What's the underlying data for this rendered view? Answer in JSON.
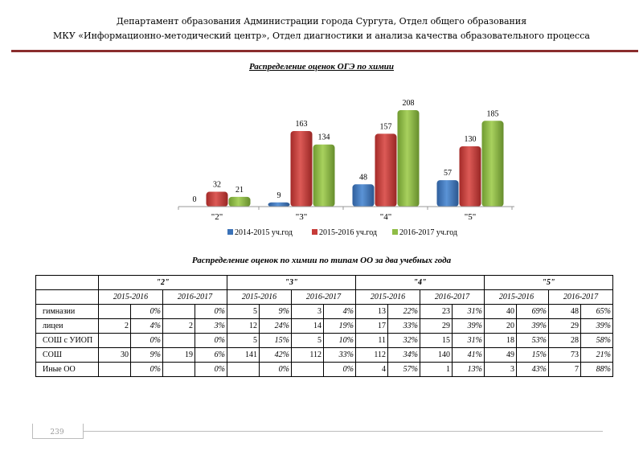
{
  "header": {
    "line1": "Департамент образования Администрации города Сургута, Отдел общего образования",
    "line2": "МКУ «Информационно-методический центр», Отдел диагностики и анализа качества образовательного процесса"
  },
  "colors": {
    "rule": "#8a2d2d",
    "series": [
      "#3b72b8",
      "#c63b38",
      "#8fbc45"
    ]
  },
  "chart_title": "Распределение оценок ОГЭ по химии",
  "chart_data": {
    "type": "bar",
    "title": "Распределение оценок ОГЭ по химии",
    "categories": [
      "\"2\"",
      "\"3\"",
      "\"4\"",
      "\"5\""
    ],
    "series": [
      {
        "name": "2014-2015 уч.год",
        "values": [
          0,
          9,
          48,
          57
        ]
      },
      {
        "name": "2015-2016 уч.год",
        "values": [
          32,
          163,
          157,
          130
        ]
      },
      {
        "name": "2016-2017 уч.год",
        "values": [
          21,
          134,
          208,
          185
        ]
      }
    ],
    "xlabel": "",
    "ylabel": "",
    "ylim": [
      0,
      230
    ],
    "legend": "bottom",
    "grid": false
  },
  "table_title": "Распределение оценок по химии по типам ОО за два учебных года",
  "table": {
    "groups": [
      "\"2\"",
      "\"3\"",
      "\"4\"",
      "\"5\""
    ],
    "years": [
      "2015-2016",
      "2016-2017"
    ],
    "rows": [
      {
        "label": "гимназии",
        "cells": [
          [
            "",
            "0%"
          ],
          [
            "",
            "0%"
          ],
          [
            "5",
            "9%"
          ],
          [
            "3",
            "4%"
          ],
          [
            "13",
            "22%"
          ],
          [
            "23",
            "31%"
          ],
          [
            "40",
            "69%"
          ],
          [
            "48",
            "65%"
          ]
        ]
      },
      {
        "label": "лицеи",
        "cells": [
          [
            "2",
            "4%"
          ],
          [
            "2",
            "3%"
          ],
          [
            "12",
            "24%"
          ],
          [
            "14",
            "19%"
          ],
          [
            "17",
            "33%"
          ],
          [
            "29",
            "39%"
          ],
          [
            "20",
            "39%"
          ],
          [
            "29",
            "39%"
          ]
        ]
      },
      {
        "label": "СОШ с УИОП",
        "cells": [
          [
            "",
            "0%"
          ],
          [
            "",
            "0%"
          ],
          [
            "5",
            "15%"
          ],
          [
            "5",
            "10%"
          ],
          [
            "11",
            "32%"
          ],
          [
            "15",
            "31%"
          ],
          [
            "18",
            "53%"
          ],
          [
            "28",
            "58%"
          ]
        ]
      },
      {
        "label": "СОШ",
        "cells": [
          [
            "30",
            "9%"
          ],
          [
            "19",
            "6%"
          ],
          [
            "141",
            "42%"
          ],
          [
            "112",
            "33%"
          ],
          [
            "112",
            "34%"
          ],
          [
            "140",
            "41%"
          ],
          [
            "49",
            "15%"
          ],
          [
            "73",
            "21%"
          ]
        ]
      },
      {
        "label": "Иные ОО",
        "cells": [
          [
            "",
            "0%"
          ],
          [
            "",
            "0%"
          ],
          [
            "",
            "0%"
          ],
          [
            "",
            "0%"
          ],
          [
            "4",
            "57%"
          ],
          [
            "1",
            "13%"
          ],
          [
            "3",
            "43%"
          ],
          [
            "7",
            "88%"
          ]
        ]
      }
    ]
  },
  "footer": {
    "page": "239"
  }
}
